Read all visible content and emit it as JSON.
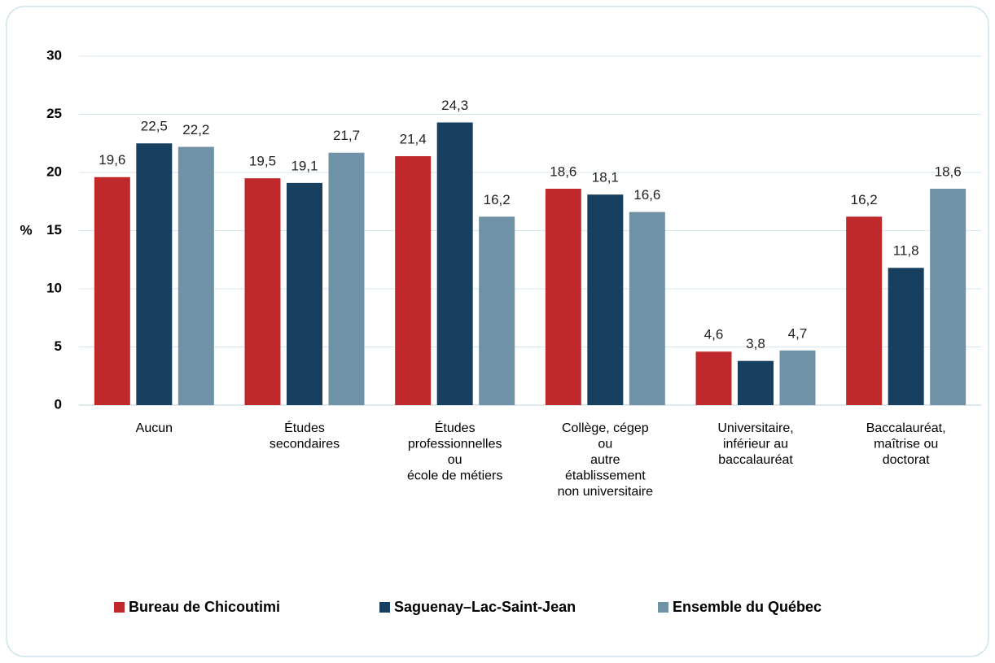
{
  "chart_data": {
    "type": "bar",
    "ylabel": "%",
    "categories": [
      [
        "Aucun"
      ],
      [
        "Études",
        "secondaires"
      ],
      [
        "Études",
        "professionnelles",
        "ou",
        "école de métiers"
      ],
      [
        "Collège, cégep",
        "ou",
        "autre",
        "établissement",
        "non universitaire"
      ],
      [
        "Universitaire,",
        "inférieur au",
        "baccalauréat"
      ],
      [
        "Baccalauréat,",
        "maîtrise ou",
        "doctorat"
      ]
    ],
    "series": [
      {
        "name": "Bureau de Chicoutimi",
        "color": "#c0292b",
        "values": [
          19.6,
          19.5,
          21.4,
          18.6,
          4.6,
          16.2
        ],
        "value_labels": [
          "19,6",
          "19,5",
          "21,4",
          "18,6",
          "4,6",
          "16,2"
        ]
      },
      {
        "name": "Saguenay–Lac-Saint-Jean",
        "color": "#173f5f",
        "values": [
          22.5,
          19.1,
          24.3,
          18.1,
          3.8,
          11.8
        ],
        "value_labels": [
          "22,5",
          "19,1",
          "24,3",
          "18,1",
          "3,8",
          "11,8"
        ]
      },
      {
        "name": "Ensemble du Québec",
        "color": "#6f92a6",
        "values": [
          22.2,
          21.7,
          16.2,
          16.6,
          4.7,
          18.6
        ],
        "value_labels": [
          "22,2",
          "21,7",
          "16,2",
          "16,6",
          "4,7",
          "18,6"
        ]
      }
    ],
    "ylim": [
      0,
      30
    ],
    "yticks": [
      0,
      5,
      10,
      15,
      20,
      25,
      30
    ],
    "grid": true,
    "legend": "bottom"
  }
}
